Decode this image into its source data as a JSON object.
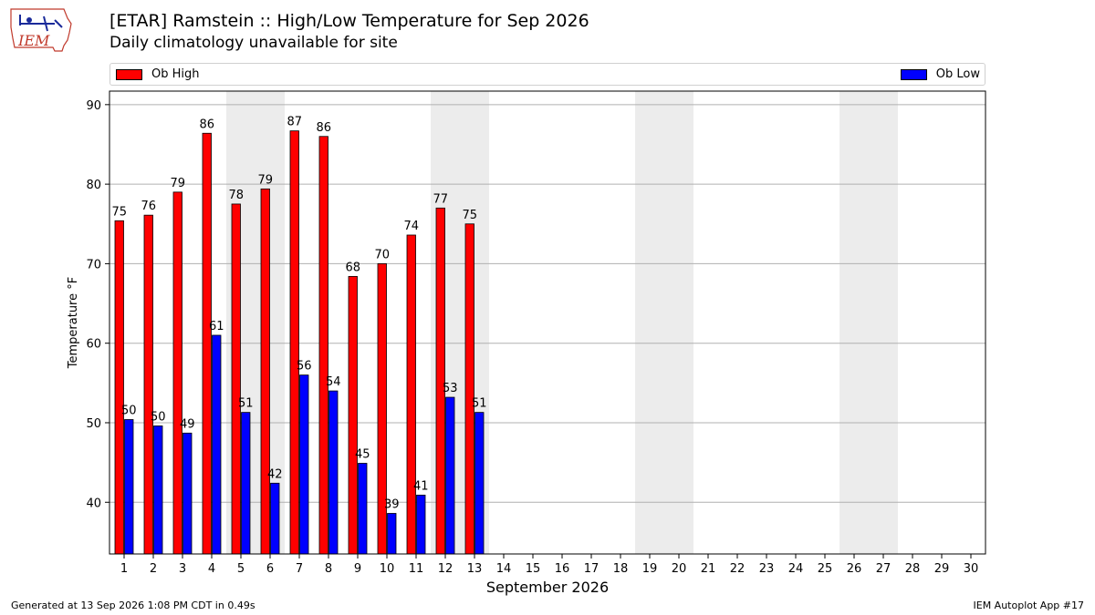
{
  "header": {
    "title": "[ETAR] Ramstein :: High/Low Temperature for Sep 2026",
    "subtitle": "Daily climatology unavailable for site",
    "logo_text": "IEM"
  },
  "legend": {
    "high_label": "Ob High",
    "low_label": "Ob Low",
    "high_color": "#ff0000",
    "low_color": "#0000ff"
  },
  "footer": {
    "generated": "Generated at 13 Sep 2026 1:08 PM CDT in 0.49s",
    "app": "IEM Autoplot App #17"
  },
  "chart_data": {
    "type": "bar",
    "title": "[ETAR] Ramstein :: High/Low Temperature for Sep 2026",
    "xlabel": "September 2026",
    "ylabel": "Temperature °F",
    "ylim": [
      33.5,
      91.7
    ],
    "yticks": [
      40,
      50,
      60,
      70,
      80,
      90
    ],
    "grid": "horizontal",
    "legend_position": "top",
    "categories": [
      "1",
      "2",
      "3",
      "4",
      "5",
      "6",
      "7",
      "8",
      "9",
      "10",
      "11",
      "12",
      "13",
      "14",
      "15",
      "16",
      "17",
      "18",
      "19",
      "20",
      "21",
      "22",
      "23",
      "24",
      "25",
      "26",
      "27",
      "28",
      "29",
      "30"
    ],
    "weekend_days": [
      5,
      6,
      12,
      13,
      19,
      20,
      26,
      27
    ],
    "series": [
      {
        "name": "Ob High",
        "color": "#ff0000",
        "values": [
          75.4,
          76.1,
          79.0,
          86.4,
          77.5,
          79.4,
          86.7,
          86.0,
          68.4,
          70.0,
          73.6,
          77.0,
          75.0,
          null,
          null,
          null,
          null,
          null,
          null,
          null,
          null,
          null,
          null,
          null,
          null,
          null,
          null,
          null,
          null,
          null
        ],
        "labels": [
          "75",
          "76",
          "79",
          "86",
          "78",
          "79",
          "87",
          "86",
          "68",
          "70",
          "74",
          "77",
          "75"
        ]
      },
      {
        "name": "Ob Low",
        "color": "#0000ff",
        "values": [
          50.4,
          49.6,
          48.7,
          61.0,
          51.3,
          42.4,
          56.0,
          54.0,
          44.9,
          38.6,
          40.9,
          53.2,
          51.3,
          null,
          null,
          null,
          null,
          null,
          null,
          null,
          null,
          null,
          null,
          null,
          null,
          null,
          null,
          null,
          null,
          null
        ],
        "labels": [
          "50",
          "50",
          "49",
          "61",
          "51",
          "42",
          "56",
          "54",
          "45",
          "39",
          "41",
          "53",
          "51"
        ]
      }
    ]
  }
}
